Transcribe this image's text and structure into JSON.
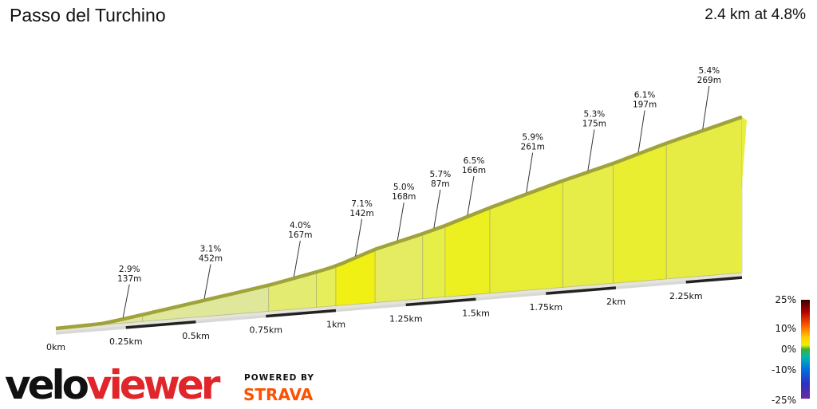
{
  "header": {
    "title": "Passo del Turchino",
    "summary": "2.4 km at 4.8%"
  },
  "chart_data": {
    "type": "area",
    "x_unit": "km",
    "distance_ticks": [
      "0km",
      "0.25km",
      "0.5km",
      "0.75km",
      "1km",
      "1.25km",
      "1.5km",
      "1.75km",
      "2km",
      "2.25km"
    ],
    "segments": [
      {
        "start_km": 0.0,
        "end_km": 0.17,
        "gradient": 0.5,
        "color": "#6cc044"
      },
      {
        "start_km": 0.17,
        "end_km": 0.31,
        "gradient": 2.9,
        "color": "#dfe6a0"
      },
      {
        "start_km": 0.31,
        "end_km": 0.76,
        "gradient": 3.1,
        "color": "#dfe89a"
      },
      {
        "start_km": 0.76,
        "end_km": 0.93,
        "gradient": 4.0,
        "color": "#e3ec70"
      },
      {
        "start_km": 0.93,
        "end_km": 1.0,
        "gradient": 4.5,
        "color": "#e6ee5c"
      },
      {
        "start_km": 1.0,
        "end_km": 1.14,
        "gradient": 7.1,
        "color": "#f0f014"
      },
      {
        "start_km": 1.14,
        "end_km": 1.31,
        "gradient": 5.0,
        "color": "#e6ec62"
      },
      {
        "start_km": 1.31,
        "end_km": 1.39,
        "gradient": 5.7,
        "color": "#e6ee48"
      },
      {
        "start_km": 1.39,
        "end_km": 1.55,
        "gradient": 6.5,
        "color": "#ecf020"
      },
      {
        "start_km": 1.55,
        "end_km": 1.81,
        "gradient": 5.9,
        "color": "#e8ee36"
      },
      {
        "start_km": 1.81,
        "end_km": 1.99,
        "gradient": 5.3,
        "color": "#e6ec48"
      },
      {
        "start_km": 1.99,
        "end_km": 2.18,
        "gradient": 6.1,
        "color": "#e9ef30"
      },
      {
        "start_km": 2.18,
        "end_km": 2.45,
        "gradient": 5.4,
        "color": "#e6ec44"
      }
    ],
    "annotations": [
      {
        "gradient": "2.9%",
        "length": "137m",
        "at_km": 0.24
      },
      {
        "gradient": "3.1%",
        "length": "452m",
        "at_km": 0.53
      },
      {
        "gradient": "4.0%",
        "length": "167m",
        "at_km": 0.85
      },
      {
        "gradient": "7.1%",
        "length": "142m",
        "at_km": 1.07
      },
      {
        "gradient": "5.0%",
        "length": "168m",
        "at_km": 1.22
      },
      {
        "gradient": "5.7%",
        "length": "87m",
        "at_km": 1.35
      },
      {
        "gradient": "6.5%",
        "length": "166m",
        "at_km": 1.47
      },
      {
        "gradient": "5.9%",
        "length": "261m",
        "at_km": 1.68
      },
      {
        "gradient": "5.3%",
        "length": "175m",
        "at_km": 1.9
      },
      {
        "gradient": "6.1%",
        "length": "197m",
        "at_km": 2.08
      },
      {
        "gradient": "5.4%",
        "length": "269m",
        "at_km": 2.31
      }
    ],
    "legend": {
      "labels": [
        "25%",
        "10%",
        "0%",
        "-10%",
        "-25%"
      ],
      "placement": "bottom-right"
    }
  },
  "branding": {
    "logo_velo": "velo",
    "logo_viewer": "viewer",
    "powered_by": "POWERED BY",
    "strava": "STRAVA",
    "velo_color": "#111111",
    "viewer_color": "#e0262b",
    "strava_color": "#fc5200"
  }
}
